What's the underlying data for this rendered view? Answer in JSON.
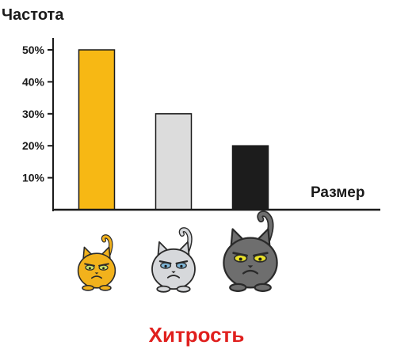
{
  "chart_data": {
    "type": "bar",
    "ylabel": "Частота",
    "xlabel": "Размер",
    "caption": "Хитрость",
    "yticks": [
      10,
      20,
      30,
      40,
      50
    ],
    "ytick_labels": [
      "10%",
      "20%",
      "30%",
      "40%",
      "50%"
    ],
    "ylim": [
      0,
      50
    ],
    "grid": false,
    "categories": [
      "small cat",
      "medium cat",
      "large cat"
    ],
    "values": [
      50,
      30,
      20
    ],
    "colors": [
      "#f7b814",
      "#dcdcdc",
      "#1c1c1c"
    ],
    "cat_colors": [
      "#f2b21c",
      "#d6d8db",
      "#6e6e6e"
    ],
    "cat_eye_colors": [
      "#c9e06a",
      "#7eb5d6",
      "#e8e02a"
    ],
    "caption_color": "#e0201e"
  }
}
